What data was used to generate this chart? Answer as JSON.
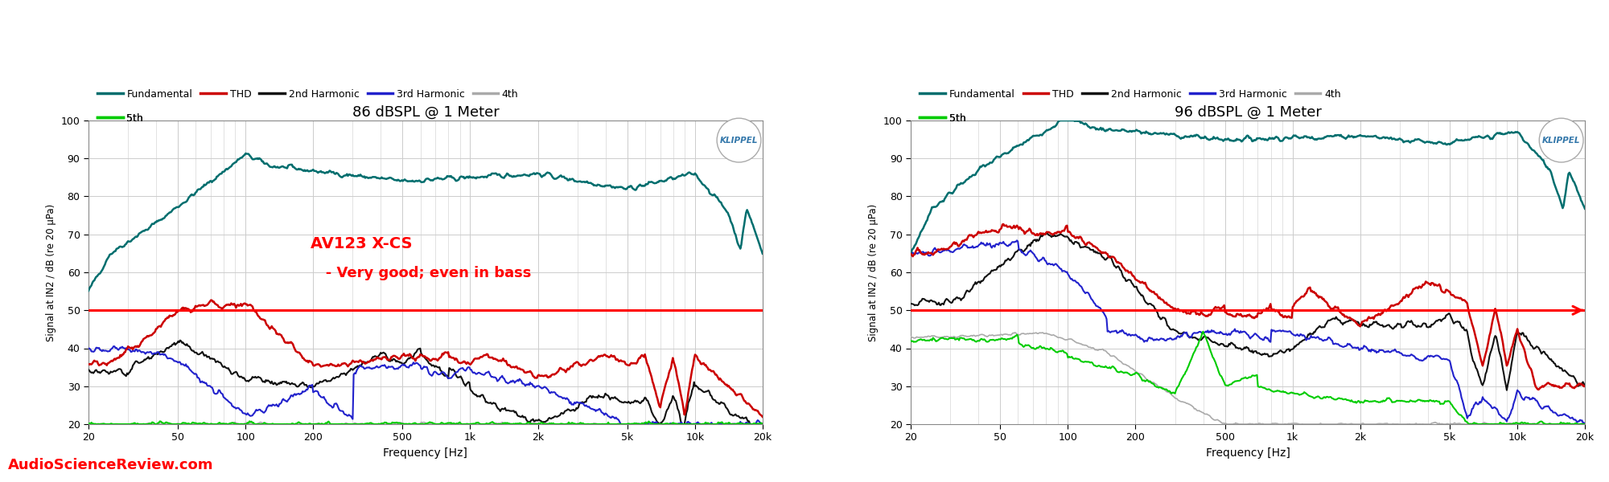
{
  "title_left": "86 dBSPL @ 1 Meter",
  "title_right": "96 dBSPL @ 1 Meter",
  "ylabel": "Signal at IN2 / dB (re 20 μPa)",
  "xlabel": "Frequency [Hz]",
  "ylim": [
    20,
    100
  ],
  "xlim": [
    20,
    20000
  ],
  "yticks": [
    20,
    30,
    40,
    50,
    60,
    70,
    80,
    90,
    100
  ],
  "xtick_vals": [
    20,
    50,
    100,
    200,
    500,
    1000,
    2000,
    5000,
    10000,
    20000
  ],
  "xtick_labels": [
    "20",
    "50",
    "100",
    "200",
    "500",
    "1k",
    "2k",
    "5k",
    "10k",
    "20k"
  ],
  "colors": {
    "fundamental": "#006e6e",
    "thd": "#cc0000",
    "harmonic2": "#111111",
    "harmonic3": "#2222cc",
    "harmonic4": "#aaaaaa",
    "harmonic5": "#00cc00",
    "ref_line": "#ff0000",
    "annotation": "#ff0000",
    "bg": "#ffffff",
    "grid": "#cccccc",
    "watermark": "#ff0000",
    "klippel_text": "#3377aa",
    "klippel_circle": "#aaaaaa"
  },
  "annotation_line1": "AV123 X-CS",
  "annotation_line2": "   - Very good; even in bass",
  "watermark": "AudioScienceReview.com",
  "ref_line_y": 50,
  "legend_entries": [
    "Fundamental",
    "THD",
    "2nd Harmonic",
    "3rd Harmonic",
    "4th",
    "5th"
  ]
}
